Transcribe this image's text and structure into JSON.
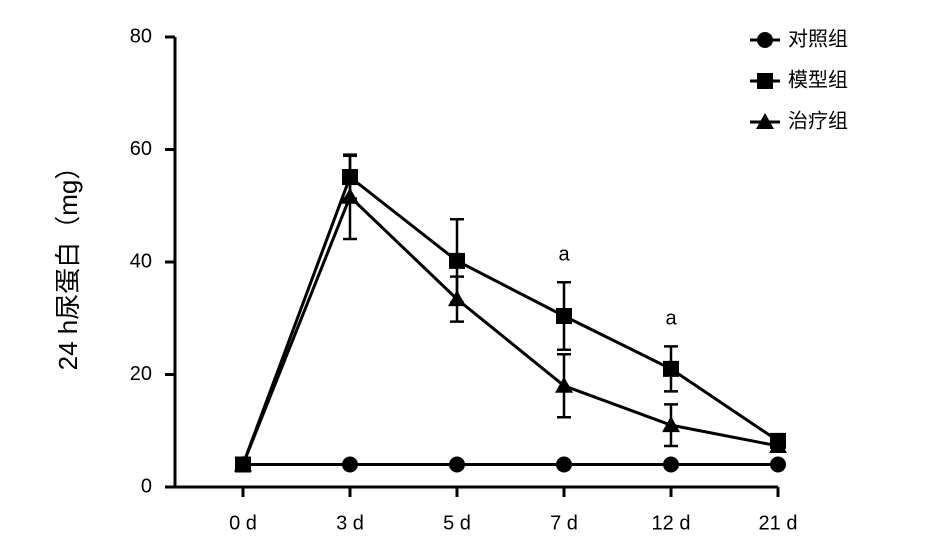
{
  "chart_data": {
    "type": "line",
    "y_label": "24 h尿蛋白（mg）",
    "categories": [
      "0 d",
      "3 d",
      "5 d",
      "7 d",
      "12 d",
      "21 d"
    ],
    "series": [
      {
        "name": "对照组",
        "color": "#000000",
        "marker": "circle",
        "values": [
          4,
          4,
          4,
          4,
          4,
          4
        ],
        "errors": [
          0,
          0,
          0,
          0,
          0,
          0
        ]
      },
      {
        "name": "模型组",
        "color": "#000000",
        "marker": "square",
        "values": [
          4,
          55.1,
          40.2,
          30.4,
          21,
          8.2
        ],
        "errors": [
          0,
          3.8,
          7.4,
          6,
          4,
          1
        ]
      },
      {
        "name": "治疗组",
        "color": "#000000",
        "marker": "triangle",
        "values": [
          4,
          51.6,
          33.4,
          18,
          11,
          7.3
        ],
        "errors": [
          0,
          7.5,
          4,
          5.6,
          3.7,
          1
        ]
      }
    ],
    "annotations": [
      {
        "text": "a",
        "x": "7 d"
      },
      {
        "text": "a",
        "x": "12 d"
      }
    ],
    "ylim": [
      0,
      80
    ],
    "yticks": [
      0,
      20,
      40,
      60,
      80
    ],
    "legend": "top-right",
    "grid": false
  }
}
